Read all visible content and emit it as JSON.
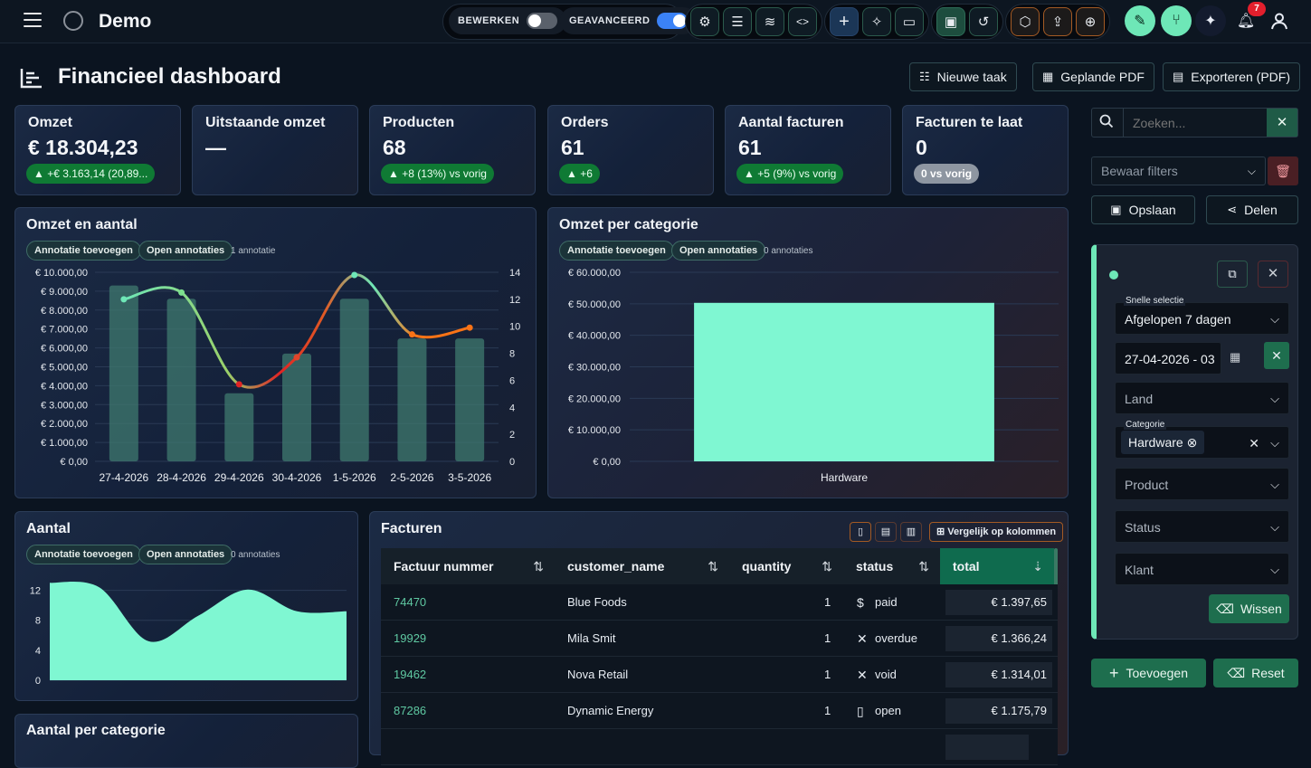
{
  "app": {
    "title": "Demo"
  },
  "toggles": [
    {
      "label": "BEWERKEN",
      "on": false
    },
    {
      "label": "GEAVANCEERD",
      "on": true
    }
  ],
  "notifications": {
    "count": "7"
  },
  "page": {
    "title": "Financieel dashboard"
  },
  "header_buttons": {
    "new_task": "Nieuwe taak",
    "scheduled_pdf": "Geplande PDF",
    "export_pdf": "Exporteren (PDF)"
  },
  "kpis": [
    {
      "label": "Omzet",
      "value": "€ 18.304,23",
      "delta": "▲ +€ 3.163,14 (20,89...",
      "delta_style": "green"
    },
    {
      "label": "Uitstaande omzet",
      "value": "—",
      "delta": "",
      "delta_style": "none"
    },
    {
      "label": "Producten",
      "value": "68",
      "delta": "▲ +8 (13%) vs vorig",
      "delta_style": "green"
    },
    {
      "label": "Orders",
      "value": "61",
      "delta": "▲ +6",
      "delta_style": "green"
    },
    {
      "label": "Aantal facturen",
      "value": "61",
      "delta": "▲ +5 (9%) vs vorig",
      "delta_style": "green"
    },
    {
      "label": "Facturen te laat",
      "value": "0",
      "delta": "0 vs vorig",
      "delta_style": "grey"
    }
  ],
  "annotations": {
    "add": "Annotatie toevoegen",
    "open": "Open annotaties"
  },
  "charts": {
    "omzet_aantal": {
      "title": "Omzet en aantal",
      "annotation_count": "1 annotatie",
      "chart_data": {
        "type": "bar",
        "categories": [
          "27-4-2026",
          "28-4-2026",
          "29-4-2026",
          "30-4-2026",
          "1-5-2026",
          "2-5-2026",
          "3-5-2026"
        ],
        "series": [
          {
            "type": "bar",
            "axis": "left",
            "values": [
              9300,
              8600,
              3600,
              5700,
              8600,
              6500,
              6500
            ]
          },
          {
            "type": "line",
            "axis": "right",
            "values": [
              12,
              12.5,
              5.7,
              7.7,
              13.8,
              9.4,
              9.9
            ]
          }
        ],
        "left_ticks": [
          "€ 0,00",
          "€ 1.000,00",
          "€ 2.000,00",
          "€ 3.000,00",
          "€ 4.000,00",
          "€ 5.000,00",
          "€ 6.000,00",
          "€ 7.000,00",
          "€ 8.000,00",
          "€ 9.000,00",
          "€ 10.000,00"
        ],
        "right_ticks": [
          "0",
          "2",
          "4",
          "6",
          "8",
          "10",
          "12",
          "14"
        ],
        "ylim_left": [
          0,
          10000
        ],
        "ylim_right": [
          0,
          14
        ]
      }
    },
    "omzet_categorie": {
      "title": "Omzet per categorie",
      "annotation_count": "0 annotaties",
      "chart_data": {
        "type": "bar",
        "categories": [
          "Hardware"
        ],
        "values": [
          50300
        ],
        "y_ticks": [
          "€ 0,00",
          "€ 10.000,00",
          "€ 20.000,00",
          "€ 30.000,00",
          "€ 40.000,00",
          "€ 50.000,00",
          "€ 60.000,00"
        ],
        "ylim": [
          0,
          60000
        ]
      }
    },
    "aantal": {
      "title": "Aantal",
      "annotation_count": "0 annotaties",
      "chart_data": {
        "type": "area",
        "values": [
          13,
          12.4,
          5.2,
          8.6,
          12.1,
          9.2,
          9.2
        ],
        "y_ticks": [
          "0",
          "4",
          "8",
          "12"
        ],
        "ylim": [
          0,
          14
        ]
      }
    },
    "aantal_categorie": {
      "title": "Aantal per categorie"
    }
  },
  "facturen": {
    "title": "Facturen",
    "compare_label": "Vergelijk op kolommen",
    "columns": [
      "Factuur nummer",
      "customer_name",
      "quantity",
      "status",
      "total"
    ],
    "rows": [
      {
        "nr": "74470",
        "customer": "Blue Foods",
        "qty": "1",
        "status_icon": "$",
        "status": "paid",
        "total": "€ 1.397,65"
      },
      {
        "nr": "19929",
        "customer": "Mila Smit",
        "qty": "1",
        "status_icon": "✕",
        "status": "overdue",
        "total": "€ 1.366,24"
      },
      {
        "nr": "19462",
        "customer": "Nova Retail",
        "qty": "1",
        "status_icon": "✕",
        "status": "void",
        "total": "€ 1.314,01"
      },
      {
        "nr": "87286",
        "customer": "Dynamic Energy",
        "qty": "1",
        "status_icon": "▯",
        "status": "open",
        "total": "€ 1.175,79"
      }
    ]
  },
  "sidebar": {
    "search_placeholder": "Zoeken...",
    "saved_filters_placeholder": "Bewaar filters",
    "save": "Opslaan",
    "share": "Delen",
    "filters": {
      "quick_label": "Snelle selectie",
      "quick_value": "Afgelopen 7 dagen",
      "date_value": "27-04-2026 - 03",
      "land": "Land",
      "category_label": "Categorie",
      "category_value": "Hardware",
      "product": "Product",
      "status": "Status",
      "klant": "Klant",
      "clear": "Wissen"
    },
    "add": "Toevoegen",
    "reset": "Reset"
  }
}
